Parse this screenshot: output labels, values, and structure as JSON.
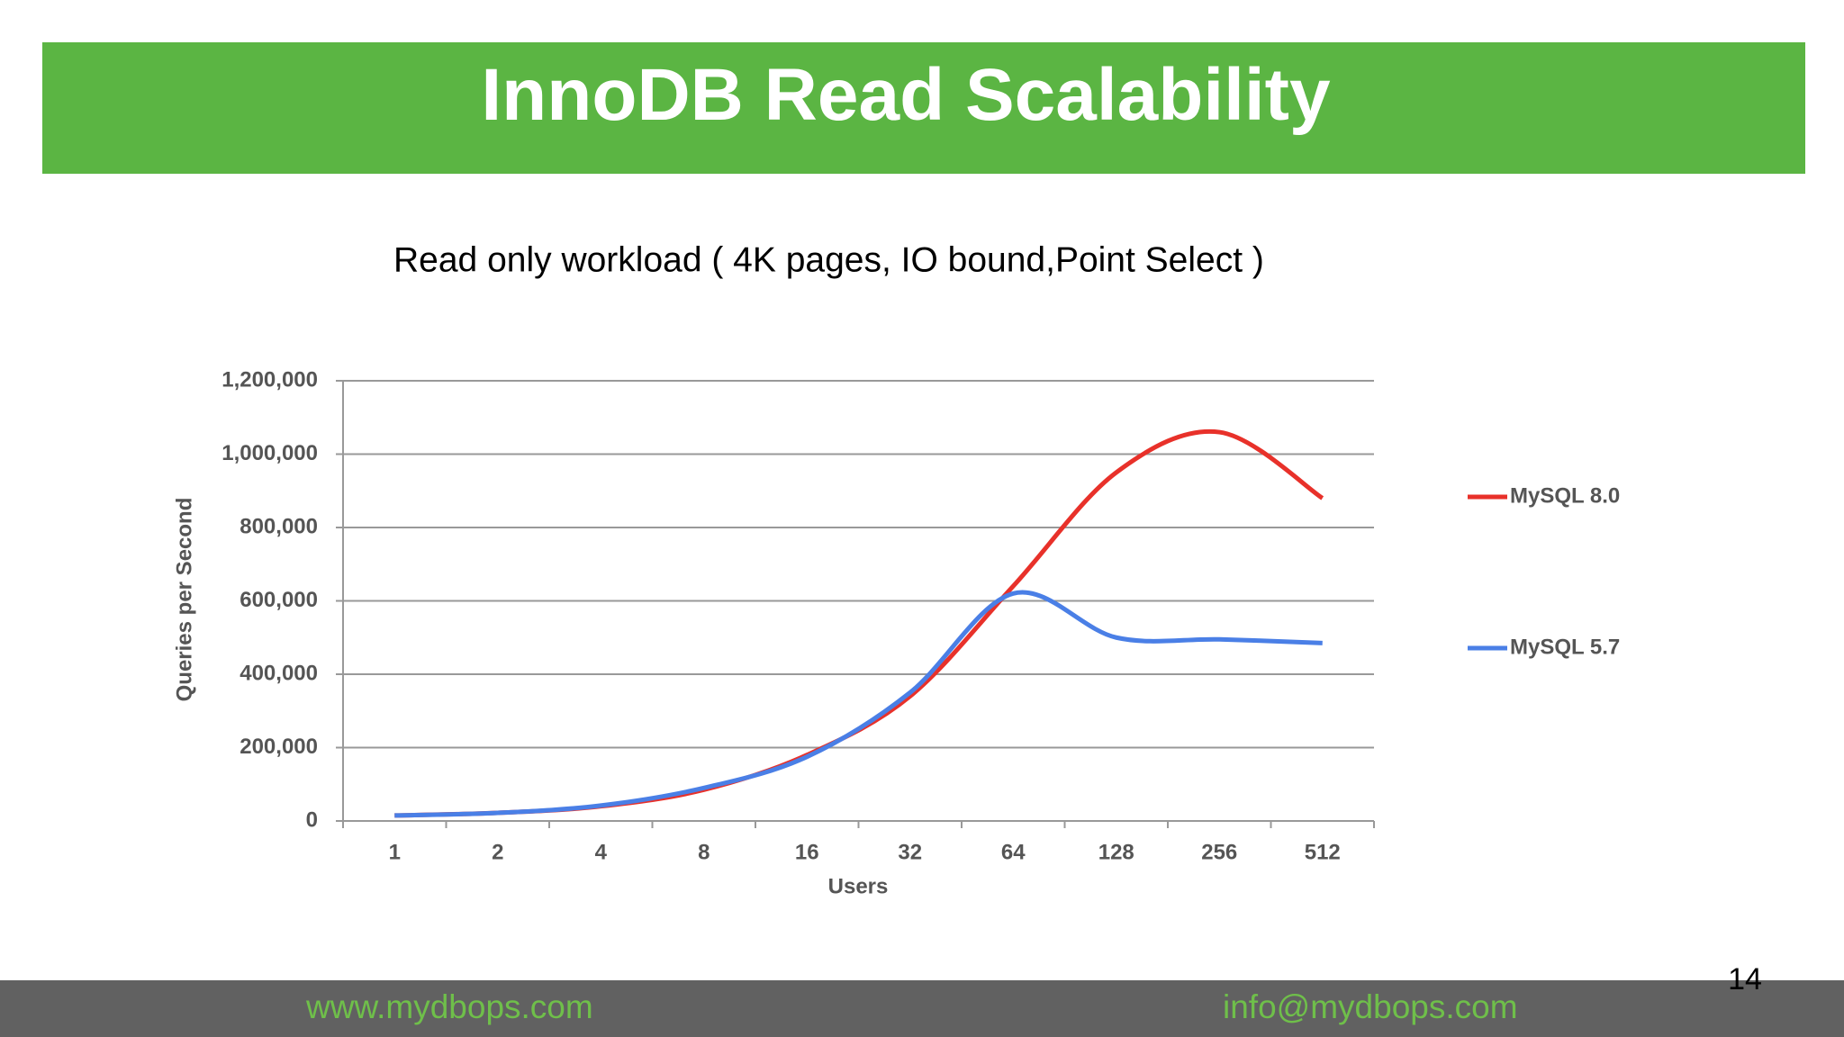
{
  "slide": {
    "title": "InnoDB Read Scalability",
    "subtitle": "Read only workload ( 4K pages, IO bound,Point Select )",
    "footer_left": "www.mydbops.com",
    "footer_right": "info@mydbops.com",
    "page_number": "14"
  },
  "chart_data": {
    "type": "line",
    "x_label": "Users",
    "y_label": "Queries per Second",
    "categories": [
      "1",
      "2",
      "4",
      "8",
      "16",
      "32",
      "64",
      "128",
      "256",
      "512"
    ],
    "series": [
      {
        "name": "MySQL 8.0",
        "color": "#e8312a",
        "values": [
          15000,
          22000,
          40000,
          85000,
          180000,
          340000,
          640000,
          950000,
          1060000,
          880000
        ]
      },
      {
        "name": "MySQL 5.7",
        "color": "#4a7fe6",
        "values": [
          15000,
          22000,
          42000,
          90000,
          175000,
          350000,
          620000,
          500000,
          495000,
          485000
        ]
      }
    ],
    "ylim": [
      0,
      1200000
    ],
    "yticks": [
      0,
      {
        "value": 200000,
        "label": "200,000"
      },
      {
        "value": 400000,
        "label": "400,000"
      },
      {
        "value": 600000,
        "label": "600,000"
      },
      {
        "value": 800000,
        "label": "800,000"
      },
      {
        "value": 1000000,
        "label": "1,000,000"
      },
      {
        "value": 1200000,
        "label": "1,200,000"
      }
    ],
    "grid": true,
    "legend": "right"
  }
}
